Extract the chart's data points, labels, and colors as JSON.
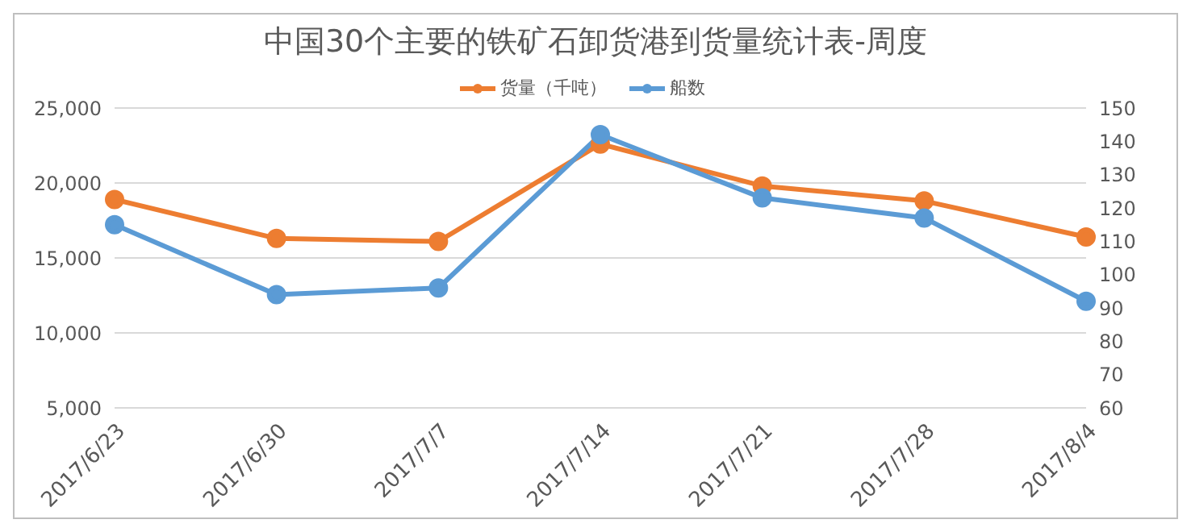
{
  "chart_data": {
    "type": "line",
    "title": "中国30个主要的铁矿石卸货港到货量统计表-周度",
    "categories": [
      "2017/6/23",
      "2017/6/30",
      "2017/7/7",
      "2017/7/14",
      "2017/7/21",
      "2017/7/28",
      "2017/8/4"
    ],
    "series": [
      {
        "name": "货量（千吨）",
        "color": "#ed7d31",
        "values": [
          18900,
          16300,
          16100,
          22600,
          19800,
          18800,
          16400
        ]
      },
      {
        "name": "船数",
        "color": "#5b9bd5",
        "axis": "y2",
        "values": [
          115,
          94,
          96,
          142,
          123,
          117,
          92
        ]
      }
    ],
    "ylim": [
      5000,
      25000
    ],
    "yticks": [
      {
        "value": 5000,
        "label": "5,000"
      },
      {
        "value": 10000,
        "label": "10,000"
      },
      {
        "value": 15000,
        "label": "15,000"
      },
      {
        "value": 20000,
        "label": "20,000"
      },
      {
        "value": 25000,
        "label": "25,000"
      }
    ],
    "y2lim": [
      60,
      150
    ],
    "y2ticks": [
      60,
      70,
      80,
      90,
      100,
      110,
      120,
      130,
      140,
      150
    ],
    "grid": "y",
    "legend": "top",
    "marker": "circle",
    "line_style": "solid"
  }
}
